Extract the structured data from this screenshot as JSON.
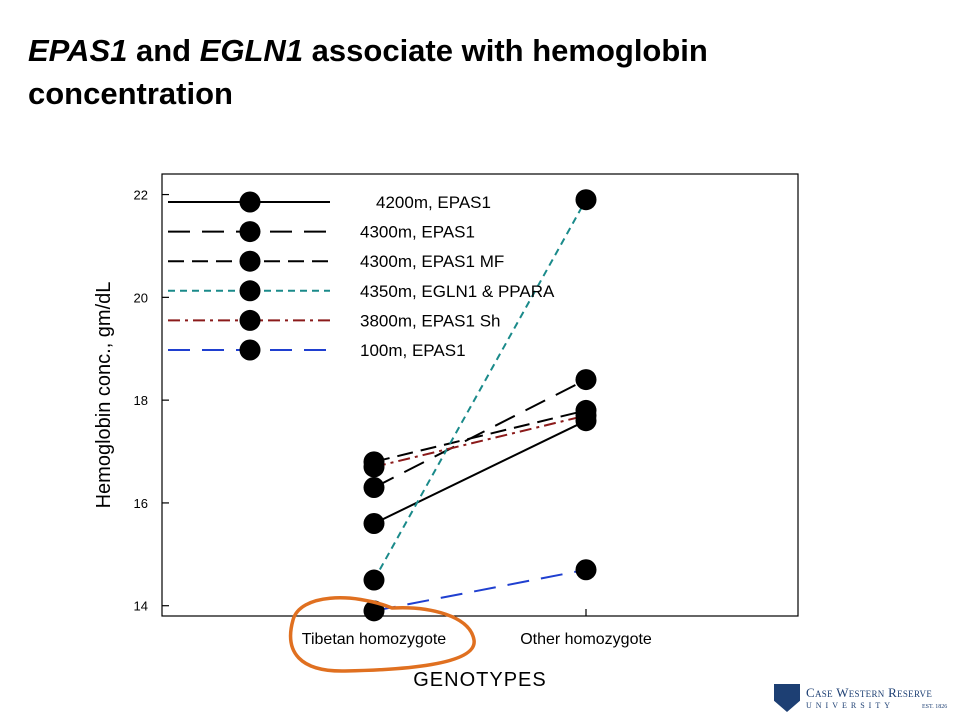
{
  "title": {
    "gene1": "EPAS1",
    "and": " and ",
    "gene2": "EGLN1",
    "rest": " associate with hemoglobin concentration"
  },
  "chart_data": {
    "type": "line",
    "categories": [
      "Tibetan homozygote",
      "Other homozygote"
    ],
    "xlabel": "GENOTYPES",
    "ylabel": "Hemoglobin conc., gm/dL",
    "ylim": [
      13.8,
      22.4
    ],
    "yticks": [
      14,
      16,
      18,
      20,
      22
    ],
    "grid": false,
    "legend_position": "top-left",
    "series": [
      {
        "name": "4200m, EPAS1",
        "values": [
          15.6,
          17.6
        ],
        "color": "#000000",
        "dash": "solid"
      },
      {
        "name": "4300m, EPAS1",
        "values": [
          16.3,
          18.4
        ],
        "color": "#000000",
        "dash": "longdash"
      },
      {
        "name": "4300m, EPAS1 MF",
        "values": [
          16.8,
          17.8
        ],
        "color": "#000000",
        "dash": "dash"
      },
      {
        "name": "4350m, EGLN1 & PPARA",
        "values": [
          14.5,
          21.9
        ],
        "color": "#1a8a8a",
        "dash": "shortdash"
      },
      {
        "name": "3800m, EPAS1 Sh",
        "values": [
          16.7,
          17.7
        ],
        "color": "#8b1a1a",
        "dash": "dashdot"
      },
      {
        "name": "100m, EPAS1",
        "values": [
          13.9,
          14.7
        ],
        "color": "#1f3fd0",
        "dash": "longdash"
      }
    ]
  },
  "annotation": {
    "type": "hand-drawn circle",
    "target": "Tibetan homozygote",
    "color": "#e07020"
  },
  "logo": {
    "name": "Case Western Reserve",
    "subtitle": "UNIVERSITY",
    "est": "EST. 1826",
    "color": "#1d3f73"
  }
}
